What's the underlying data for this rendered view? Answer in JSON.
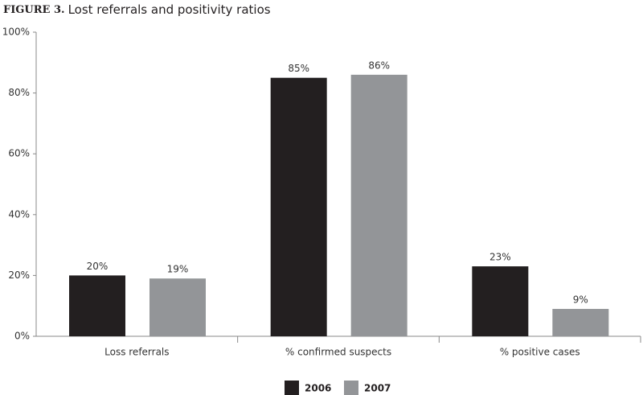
{
  "chart_data": {
    "type": "bar",
    "title_label": "FIGURE 3.",
    "title": "Lost referrals and positivity ratios",
    "categories": [
      "Loss referrals",
      "% confirmed suspects",
      "% positive cases"
    ],
    "series": [
      {
        "name": "2006",
        "color": "#231f20",
        "values": [
          20,
          85,
          23
        ],
        "value_labels": [
          "20%",
          "85%",
          "23%"
        ]
      },
      {
        "name": "2007",
        "color": "#939598",
        "values": [
          19,
          86,
          9
        ],
        "value_labels": [
          "19%",
          "86%",
          "9%"
        ]
      }
    ],
    "ylim": [
      0,
      100
    ],
    "yticks": [
      {
        "value": 0,
        "label": "0%"
      },
      {
        "value": 20,
        "label": "20%"
      },
      {
        "value": 40,
        "label": "40%"
      },
      {
        "value": 60,
        "label": "60%"
      },
      {
        "value": 80,
        "label": "80%"
      },
      {
        "value": 100,
        "label": "100%"
      }
    ],
    "grid": false,
    "legend": "bottom"
  }
}
